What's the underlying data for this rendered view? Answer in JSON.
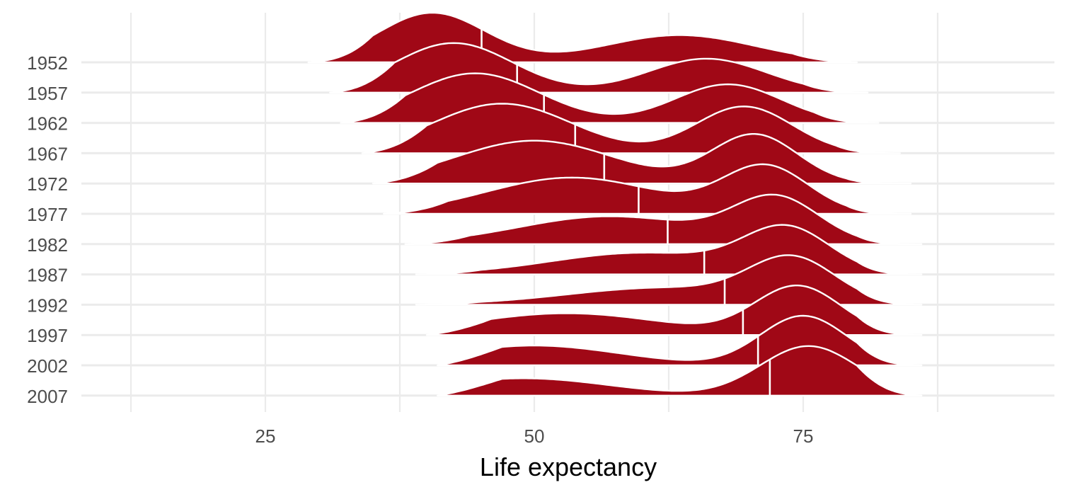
{
  "chart_data": {
    "type": "ridgeline",
    "title": "",
    "xlabel": "Life expectancy",
    "ylabel": "",
    "xlim": [
      11,
      93
    ],
    "x_ticks": [
      25,
      50,
      75
    ],
    "grid": true,
    "legend": "none",
    "fill_color": "#a00816",
    "line_color": "#ffffff",
    "grid_color": "#ebebeb",
    "x_grid": [
      12.5,
      25,
      37.5,
      50,
      62.5,
      75,
      87.5
    ],
    "categories": [
      "1952",
      "1957",
      "1962",
      "1967",
      "1972",
      "1977",
      "1982",
      "1987",
      "1992",
      "1997",
      "2002",
      "2007"
    ],
    "series": [
      {
        "year": "1952",
        "range": [
          29,
          80
        ],
        "median": 45.1,
        "peaks": [
          [
            40.5,
            1.0,
            5.0
          ],
          [
            63.5,
            0.55,
            7.0
          ]
        ]
      },
      {
        "year": "1957",
        "range": [
          31,
          81
        ],
        "median": 48.4,
        "peaks": [
          [
            42.5,
            0.95,
            5.5
          ],
          [
            66.0,
            0.65,
            5.5
          ]
        ]
      },
      {
        "year": "1962",
        "range": [
          32,
          82
        ],
        "median": 50.9,
        "peaks": [
          [
            44.5,
            0.9,
            6.0
          ],
          [
            68.0,
            0.7,
            5.0
          ]
        ]
      },
      {
        "year": "1967",
        "range": [
          34,
          84
        ],
        "median": 53.8,
        "peaks": [
          [
            47.0,
            0.85,
            6.5
          ],
          [
            69.5,
            0.8,
            4.5
          ]
        ]
      },
      {
        "year": "1972",
        "range": [
          35,
          85
        ],
        "median": 56.5,
        "peaks": [
          [
            50.0,
            0.75,
            7.5
          ],
          [
            70.5,
            0.85,
            4.0
          ]
        ]
      },
      {
        "year": "1977",
        "range": [
          36,
          85
        ],
        "median": 59.7,
        "peaks": [
          [
            53.5,
            0.7,
            8.0
          ],
          [
            71.5,
            0.9,
            4.0
          ]
        ]
      },
      {
        "year": "1982",
        "range": [
          38,
          86
        ],
        "median": 62.4,
        "peaks": [
          [
            57.0,
            0.6,
            8.5
          ],
          [
            72.5,
            0.95,
            4.0
          ]
        ]
      },
      {
        "year": "1987",
        "range": [
          39,
          86
        ],
        "median": 65.8,
        "peaks": [
          [
            60.0,
            0.5,
            8.5
          ],
          [
            73.5,
            1.0,
            4.0
          ]
        ]
      },
      {
        "year": "1992",
        "range": [
          39,
          86
        ],
        "median": 67.7,
        "peaks": [
          [
            62.0,
            0.4,
            9.0
          ],
          [
            74.0,
            1.0,
            4.0
          ]
        ]
      },
      {
        "year": "1997",
        "range": [
          40,
          86
        ],
        "median": 69.4,
        "peaks": [
          [
            53.0,
            0.45,
            9.0
          ],
          [
            74.5,
            1.0,
            4.0
          ]
        ]
      },
      {
        "year": "2002",
        "range": [
          41,
          86
        ],
        "median": 70.8,
        "peaks": [
          [
            50.0,
            0.4,
            8.0
          ],
          [
            75.0,
            1.0,
            4.0
          ]
        ]
      },
      {
        "year": "2007",
        "range": [
          41,
          86
        ],
        "median": 71.9,
        "peaks": [
          [
            49.0,
            0.35,
            8.0
          ],
          [
            75.5,
            1.0,
            4.5
          ]
        ]
      }
    ]
  }
}
